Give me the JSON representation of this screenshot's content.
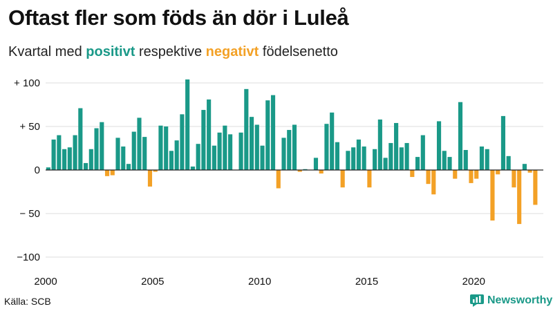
{
  "header": {
    "title": "Oftast fler som föds än dör i Luleå",
    "subtitle_prefix": "Kvartal med ",
    "subtitle_positive": "positivt",
    "subtitle_middle": " respektive ",
    "subtitle_negative": "negativt",
    "subtitle_suffix": " födelsenetto"
  },
  "footer": {
    "source": "Källa: SCB",
    "brand": "Newsworthy"
  },
  "colors": {
    "positive": "#1a9988",
    "negative": "#f3a126",
    "grid": "#dddddd",
    "zero_line": "#222222"
  },
  "chart_data": {
    "type": "bar",
    "title": "Oftast fler som föds än dör i Luleå",
    "subtitle": "Kvartal med positivt respektive negativt födelsenetto",
    "xlabel": "",
    "ylabel": "",
    "x_start": 2000.0,
    "x_step": 0.25,
    "x_range": [
      2000,
      2023.25
    ],
    "ylim": [
      -100,
      100
    ],
    "y_ticks": [
      100,
      50,
      0,
      -50,
      -100
    ],
    "y_tick_labels": [
      "+ 100",
      "+  50",
      "0",
      "− 50",
      "−100"
    ],
    "x_ticks": [
      2000,
      2005,
      2010,
      2015,
      2020
    ],
    "x_tick_labels": [
      "2000",
      "2005",
      "2010",
      "2015",
      "2020"
    ],
    "grid": true,
    "legend": "none",
    "values": [
      3,
      35,
      40,
      24,
      26,
      40,
      71,
      8,
      24,
      48,
      55,
      -7,
      -6,
      37,
      27,
      7,
      44,
      60,
      38,
      -19,
      -2,
      51,
      50,
      22,
      34,
      64,
      104,
      4,
      30,
      69,
      81,
      28,
      43,
      51,
      41,
      0,
      43,
      93,
      61,
      52,
      28,
      80,
      86,
      -21,
      37,
      46,
      52,
      -2,
      1,
      0,
      14,
      -4,
      53,
      66,
      32,
      -20,
      22,
      26,
      35,
      27,
      -20,
      24,
      58,
      14,
      31,
      54,
      26,
      31,
      -8,
      15,
      40,
      -16,
      -28,
      56,
      22,
      15,
      -10,
      78,
      23,
      -15,
      -10,
      27,
      24,
      -58,
      -5,
      62,
      16,
      -20,
      -62,
      7,
      -3,
      -40
    ]
  }
}
